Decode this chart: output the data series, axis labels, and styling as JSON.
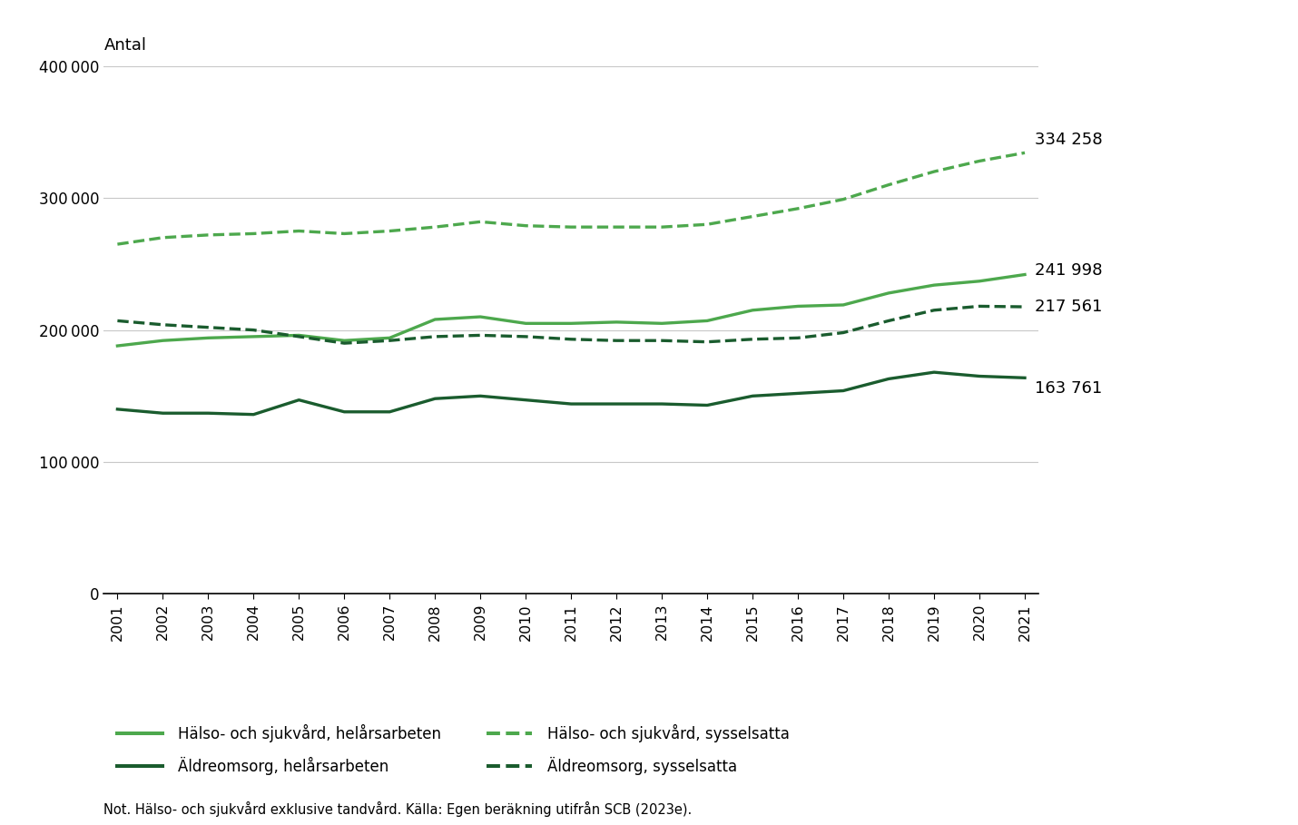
{
  "years": [
    2001,
    2002,
    2003,
    2004,
    2005,
    2006,
    2007,
    2008,
    2009,
    2010,
    2011,
    2012,
    2013,
    2014,
    2015,
    2016,
    2017,
    2018,
    2019,
    2020,
    2021
  ],
  "halso_sjukvard_sysselsatta": [
    265000,
    270000,
    272000,
    273000,
    275000,
    273000,
    275000,
    278000,
    282000,
    279000,
    278000,
    278000,
    278000,
    280000,
    286000,
    292000,
    299000,
    310000,
    320000,
    328000,
    334258
  ],
  "halso_sjukvard_helarsarbeten": [
    188000,
    192000,
    194000,
    195000,
    196000,
    192000,
    194000,
    208000,
    210000,
    205000,
    205000,
    206000,
    205000,
    207000,
    215000,
    218000,
    219000,
    228000,
    234000,
    237000,
    241998
  ],
  "aldreomsorg_sysselsatta": [
    207000,
    204000,
    202000,
    200000,
    195000,
    190000,
    192000,
    195000,
    196000,
    195000,
    193000,
    192000,
    192000,
    191000,
    193000,
    194000,
    198000,
    207000,
    215000,
    218000,
    217561
  ],
  "aldreomsorg_helarsarbeten": [
    140000,
    137000,
    137000,
    136000,
    147000,
    138000,
    138000,
    148000,
    150000,
    147000,
    144000,
    144000,
    144000,
    143000,
    150000,
    152000,
    154000,
    163000,
    168000,
    165000,
    163761
  ],
  "color_light_green": "#4da84d",
  "color_dark_green": "#1a5c2e",
  "ylim": [
    0,
    400000
  ],
  "yticks": [
    0,
    100000,
    200000,
    300000,
    400000
  ],
  "ylabel": "Antal",
  "note": "Not. Hälso- och sjukvård exklusive tandvård. Källa: Egen beräkning utifrån SCB (2023e).",
  "legend_entries": [
    "Hälso- och sjukvård, helårsarbeten",
    "Äldreomsorg, helårsarbeten",
    "Hälso- och sjukvård, sysselsatta",
    "Äldreomsorg, sysselsatta"
  ],
  "end_label_334": "334 258",
  "end_label_241": "241 998",
  "end_label_217": "217 561",
  "end_label_163": "163 761",
  "background_color": "#ffffff"
}
